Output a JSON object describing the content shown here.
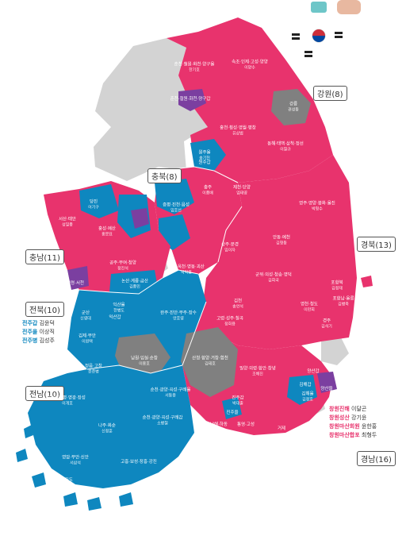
{
  "colors": {
    "pink": "#E8336D",
    "blue": "#0E87BF",
    "gray": "#808080",
    "lightgray": "#D3D3D3",
    "purple": "#7B3FA0"
  },
  "regions": {
    "gangwon": "강원(8)",
    "chungbuk": "충북(8)",
    "chungnam": "충남(11)",
    "gyeongbuk": "경북(13)",
    "jeonbuk": "전북(10)",
    "jeonnam": "전남(10)",
    "gyeongnam": "경남(16)"
  },
  "districts": [
    {
      "name": "춘천·철원·화천·양구을",
      "winner": "한기호"
    },
    {
      "name": "속초·인제·고성·양양",
      "winner": "이양수"
    },
    {
      "name": "춘천·철원·화천·양구갑",
      "winner": ""
    },
    {
      "name": "강릉",
      "winner": "권성동"
    },
    {
      "name": "홍천·횡성·영월·평창",
      "winner": "유상범"
    },
    {
      "name": "동해·태백·삼척·정선",
      "winner": "이철규"
    },
    {
      "name": "원주을",
      "winner": "송기헌"
    },
    {
      "name": "원주갑",
      "winner": ""
    },
    {
      "name": "충주",
      "winner": "이종배"
    },
    {
      "name": "제천·단양",
      "winner": "엄태영"
    },
    {
      "name": "영주·영양·봉화·울진",
      "winner": "박형수"
    },
    {
      "name": "당진",
      "winner": "어기구"
    },
    {
      "name": "증평·진천·음성",
      "winner": "임호선"
    },
    {
      "name": "서산·태안",
      "winner": "성일종"
    },
    {
      "name": "홍성·예산",
      "winner": "홍문표"
    },
    {
      "name": "안동·예천",
      "winner": "김형동"
    },
    {
      "name": "상주·문경",
      "winner": "임이자"
    },
    {
      "name": "공주·부여·청양",
      "winner": "정진석"
    },
    {
      "name": "보은·옥천·영동·괴산",
      "winner": "박덕흠"
    },
    {
      "name": "군위·의성·청송·영덕",
      "winner": "김희국"
    },
    {
      "name": "보령·서천",
      "winner": ""
    },
    {
      "name": "논산·계룡·금산",
      "winner": "김종민"
    },
    {
      "name": "포항북",
      "winner": "김정재"
    },
    {
      "name": "김천",
      "winner": "송언석"
    },
    {
      "name": "영천·청도",
      "winner": "이만희"
    },
    {
      "name": "포항남·울릉",
      "winner": "김병욱"
    },
    {
      "name": "완주·진안·무주·장수",
      "winner": "안호영"
    },
    {
      "name": "고령·성주·칠곡",
      "winner": "정희용"
    },
    {
      "name": "경주",
      "winner": "김석기"
    },
    {
      "name": "군산",
      "winner": "신영대"
    },
    {
      "name": "익산을",
      "winner": "한병도"
    },
    {
      "name": "익산갑",
      "winner": ""
    },
    {
      "name": "김제·부안",
      "winner": "이원택"
    },
    {
      "name": "정읍·고창",
      "winner": "윤준병"
    },
    {
      "name": "산청·함양·거창·합천",
      "winner": "김태호"
    },
    {
      "name": "남원·임실·순창",
      "winner": "이용호"
    },
    {
      "name": "밀양·의령·함안·창녕",
      "winner": "조해진"
    },
    {
      "name": "양산갑",
      "winner": ""
    },
    {
      "name": "양산을",
      "winner": ""
    },
    {
      "name": "김해갑",
      "winner": ""
    },
    {
      "name": "김해을",
      "winner": "김정호"
    },
    {
      "name": "담양·함평·영광·장성",
      "winner": "이개호"
    },
    {
      "name": "순천·광양·곡성·구례을",
      "winner": "서동용"
    },
    {
      "name": "순천·광양·곡성·구례갑",
      "winner": "소병철"
    },
    {
      "name": "진주갑",
      "winner": "박대출"
    },
    {
      "name": "진주을",
      "winner": ""
    },
    {
      "name": "사천·남해·하동",
      "winner": ""
    },
    {
      "name": "통영·고성",
      "winner": ""
    },
    {
      "name": "나주·화순",
      "winner": "신정훈"
    },
    {
      "name": "영암·무안·신안",
      "winner": "서삼석"
    },
    {
      "name": "고흥·보성·장흥·강진",
      "winner": ""
    },
    {
      "name": "해남·완도·진도",
      "winner": ""
    },
    {
      "name": "거제",
      "winner": ""
    }
  ],
  "jeonju_list": [
    {
      "name": "전주갑",
      "winner": "김윤덕"
    },
    {
      "name": "전주을",
      "winner": "이상직"
    },
    {
      "name": "전주병",
      "winner": "김성주"
    }
  ],
  "changwon_list": [
    {
      "name": "창원진해",
      "winner": "이달곤"
    },
    {
      "name": "창원성산",
      "winner": "강기윤"
    },
    {
      "name": "창원마산회원",
      "winner": "윤한홍"
    },
    {
      "name": "창원마산합포",
      "winner": "최형두"
    }
  ]
}
